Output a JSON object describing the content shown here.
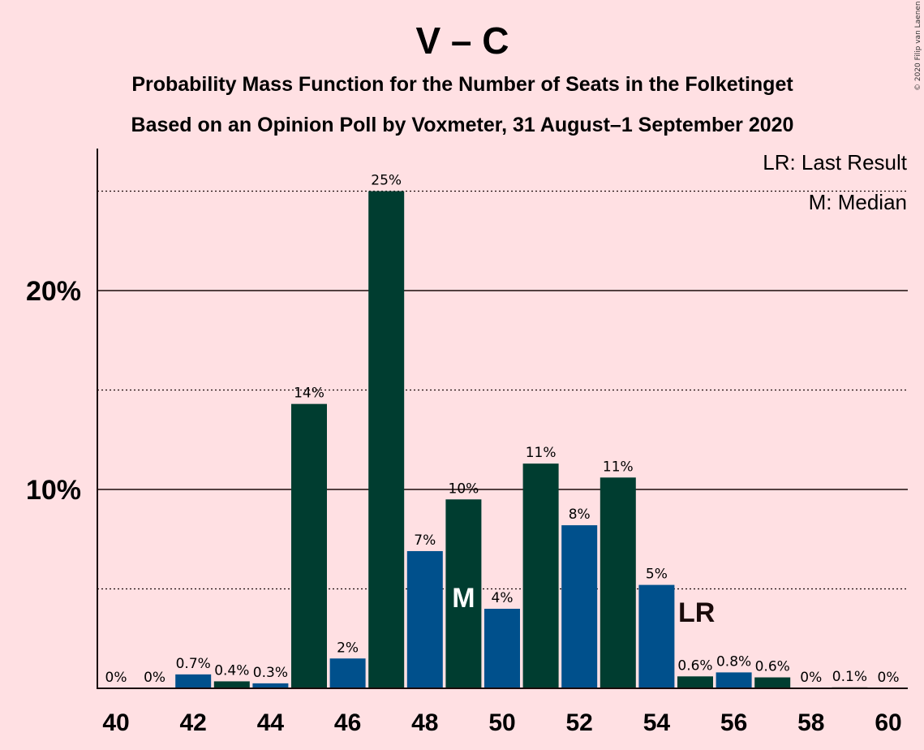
{
  "chart_data": {
    "type": "bar",
    "title": "V – C",
    "subtitle": "Probability Mass Function for the Number of Seats in the Folketinget",
    "subtitle2": "Based on an Opinion Poll by Voxmeter, 31 August–1 September 2020",
    "copyright": "© 2020 Filip van Laenen",
    "legend": {
      "last_result": "LR: Last Result",
      "median": "M: Median",
      "position": "top-right"
    },
    "x": [
      40,
      41,
      42,
      43,
      44,
      45,
      46,
      47,
      48,
      49,
      50,
      51,
      52,
      53,
      54,
      55,
      56,
      57,
      58,
      59,
      60
    ],
    "values": [
      0,
      0,
      0.7,
      0.35,
      0.25,
      14.3,
      1.5,
      25.0,
      6.9,
      9.5,
      4.0,
      11.3,
      8.2,
      10.6,
      5.2,
      0.6,
      0.8,
      0.55,
      0,
      0.05,
      0
    ],
    "labels": [
      "0%",
      "0%",
      "0.7%",
      "0.4%",
      "0.3%",
      "14%",
      "2%",
      "25%",
      "7%",
      "10%",
      "4%",
      "11%",
      "8%",
      "11%",
      "5%",
      "0.6%",
      "0.8%",
      "0.6%",
      "0%",
      "0.1%",
      "0%"
    ],
    "bar_colors": [
      "#003d30",
      "#00508c",
      "#00508c",
      "#003d30",
      "#00508c",
      "#003d30",
      "#00508c",
      "#003d30",
      "#00508c",
      "#003d30",
      "#00508c",
      "#003d30",
      "#00508c",
      "#003d30",
      "#00508c",
      "#003d30",
      "#00508c",
      "#003d30",
      "#003d30",
      "#003d30",
      "#003d30"
    ],
    "x_ticks": [
      40,
      42,
      44,
      46,
      48,
      50,
      52,
      54,
      56,
      58,
      60
    ],
    "y_ticks": [
      {
        "value": 10,
        "label": "10%"
      },
      {
        "value": 20,
        "label": "20%"
      }
    ],
    "dotted_gridlines": [
      5,
      15,
      25
    ],
    "ylim": [
      0,
      27
    ],
    "median_seat": 49,
    "median_marker": "M",
    "last_result_seat": 55,
    "last_result_marker": "LR"
  }
}
